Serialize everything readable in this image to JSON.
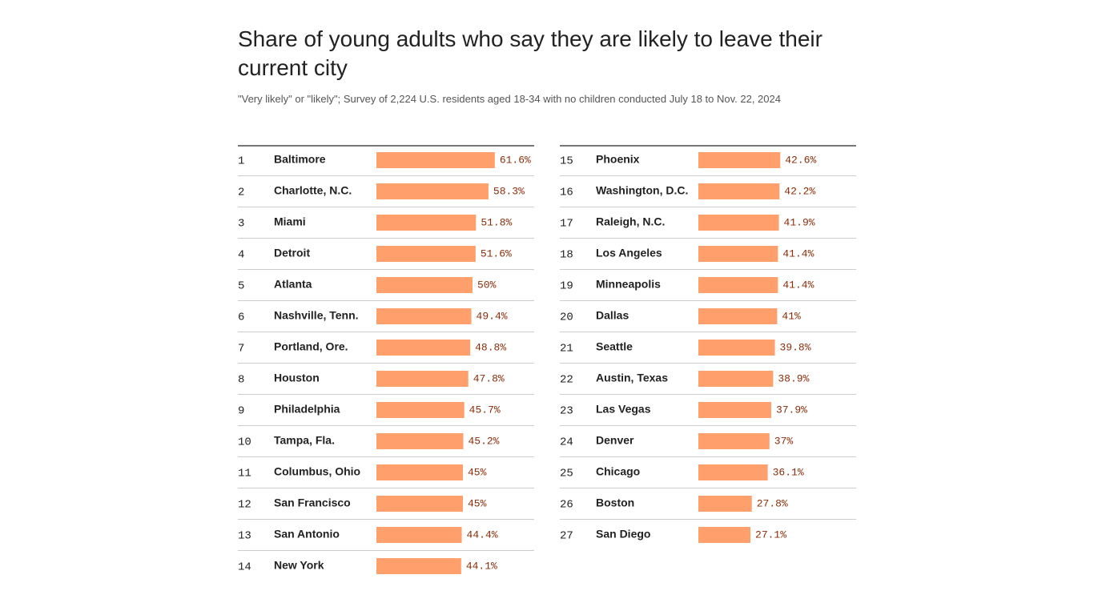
{
  "chart_data": {
    "type": "bar",
    "title": "Share of young adults who say they are likely to leave their current city",
    "subtitle": "\"Very likely\" or \"likely\"; Survey of 2,224 U.S. residents aged 18-34 with no children conducted July 18 to Nov. 22, 2024",
    "ranks": [
      1,
      2,
      3,
      4,
      5,
      6,
      7,
      8,
      9,
      10,
      11,
      12,
      13,
      14,
      15,
      16,
      17,
      18,
      19,
      20,
      21,
      22,
      23,
      24,
      25,
      26,
      27
    ],
    "categories": [
      "Baltimore",
      "Charlotte, N.C.",
      "Miami",
      "Detroit",
      "Atlanta",
      "Nashville, Tenn.",
      "Portland, Ore.",
      "Houston",
      "Philadelphia",
      "Tampa, Fla.",
      "Columbus, Ohio",
      "San Francisco",
      "San Antonio",
      "New York",
      "Phoenix",
      "Washington, D.C.",
      "Raleigh, N.C.",
      "Los Angeles",
      "Minneapolis",
      "Dallas",
      "Seattle",
      "Austin, Texas",
      "Las Vegas",
      "Denver",
      "Chicago",
      "Boston",
      "San Diego"
    ],
    "values": [
      61.6,
      58.3,
      51.8,
      51.6,
      50,
      49.4,
      48.8,
      47.8,
      45.7,
      45.2,
      45,
      45,
      44.4,
      44.1,
      42.6,
      42.2,
      41.9,
      41.4,
      41.4,
      41,
      39.8,
      38.9,
      37.9,
      37,
      36.1,
      27.8,
      27.1
    ],
    "value_labels": [
      "61.6%",
      "58.3%",
      "51.8%",
      "51.6%",
      "50%",
      "49.4%",
      "48.8%",
      "47.8%",
      "45.7%",
      "45.2%",
      "45%",
      "45%",
      "44.4%",
      "44.1%",
      "42.6%",
      "42.2%",
      "41.9%",
      "41.4%",
      "41.4%",
      "41%",
      "39.8%",
      "38.9%",
      "37.9%",
      "37%",
      "36.1%",
      "27.8%",
      "27.1%"
    ],
    "color": "#ff9f6b"
  }
}
